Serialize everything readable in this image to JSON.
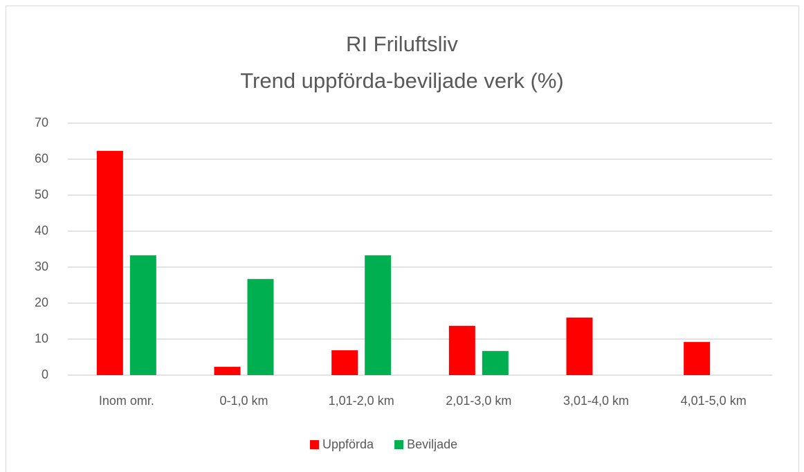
{
  "chart_data": {
    "type": "bar",
    "title": "RI Friluftsliv",
    "subtitle": "Trend uppförda-beviljade verk (%)",
    "categories": [
      "Inom omr.",
      "0-1,0 km",
      "1,01-2,0 km",
      "2,01-3,0 km",
      "3,01-4,0 km",
      "4,01-5,0 km"
    ],
    "series": [
      {
        "name": "Uppförda",
        "color": "#ff0000",
        "values": [
          62.3,
          2.3,
          6.9,
          13.7,
          16.0,
          9.2
        ]
      },
      {
        "name": "Beviljade",
        "color": "#00b050",
        "values": [
          33.3,
          26.7,
          33.3,
          6.7,
          0,
          0
        ]
      }
    ],
    "ylim": [
      0,
      70
    ],
    "yticks": [
      0,
      10,
      20,
      30,
      40,
      50,
      60,
      70
    ],
    "grid": true,
    "legend": "bottom"
  }
}
